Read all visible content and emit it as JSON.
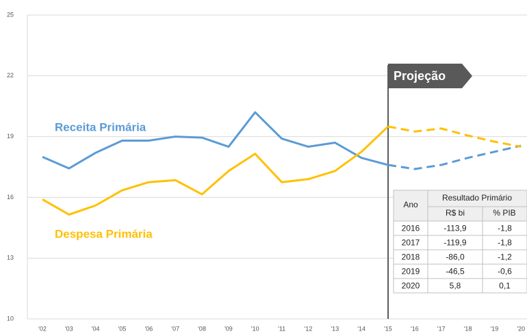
{
  "chart_data": {
    "type": "line",
    "categories": [
      "'02",
      "'03",
      "'04",
      "'05",
      "'06",
      "'07",
      "'08",
      "'09",
      "'10",
      "'11",
      "'12",
      "'13",
      "'14",
      "'15",
      "'16",
      "'17",
      "'18",
      "'19",
      "'20"
    ],
    "series": [
      {
        "name": "Receita Primária",
        "color": "#5b9bd5",
        "values": [
          18.0,
          17.43,
          18.2,
          18.8,
          18.8,
          19.0,
          18.95,
          18.5,
          20.2,
          18.9,
          18.5,
          18.7,
          17.95,
          17.6,
          17.4,
          17.6,
          17.95,
          18.25,
          18.55
        ]
      },
      {
        "name": "Despesa Primária",
        "color": "#ffc000",
        "values": [
          15.9,
          15.15,
          15.6,
          16.35,
          16.75,
          16.85,
          16.15,
          17.3,
          18.15,
          16.75,
          16.9,
          17.3,
          18.25,
          19.5,
          19.25,
          19.4,
          19.05,
          18.75,
          18.5
        ]
      }
    ],
    "ylim": [
      10,
      25
    ],
    "yticks": [
      10,
      13,
      16,
      19,
      22,
      25
    ],
    "grid": true,
    "annotation": {
      "text": "Projeção",
      "x": "'15"
    },
    "table": {
      "header": [
        "Ano",
        "Resultado Primário",
        "R$ bi",
        "% PIB"
      ],
      "rows": [
        [
          "2016",
          "-113,9",
          "-1,8"
        ],
        [
          "2017",
          "-119,9",
          "-1,8"
        ],
        [
          "2018",
          "-86,0",
          "-1,2"
        ],
        [
          "2019",
          "-46,5",
          "-0,6"
        ],
        [
          "2020",
          "5,8",
          "0,1"
        ]
      ]
    }
  }
}
